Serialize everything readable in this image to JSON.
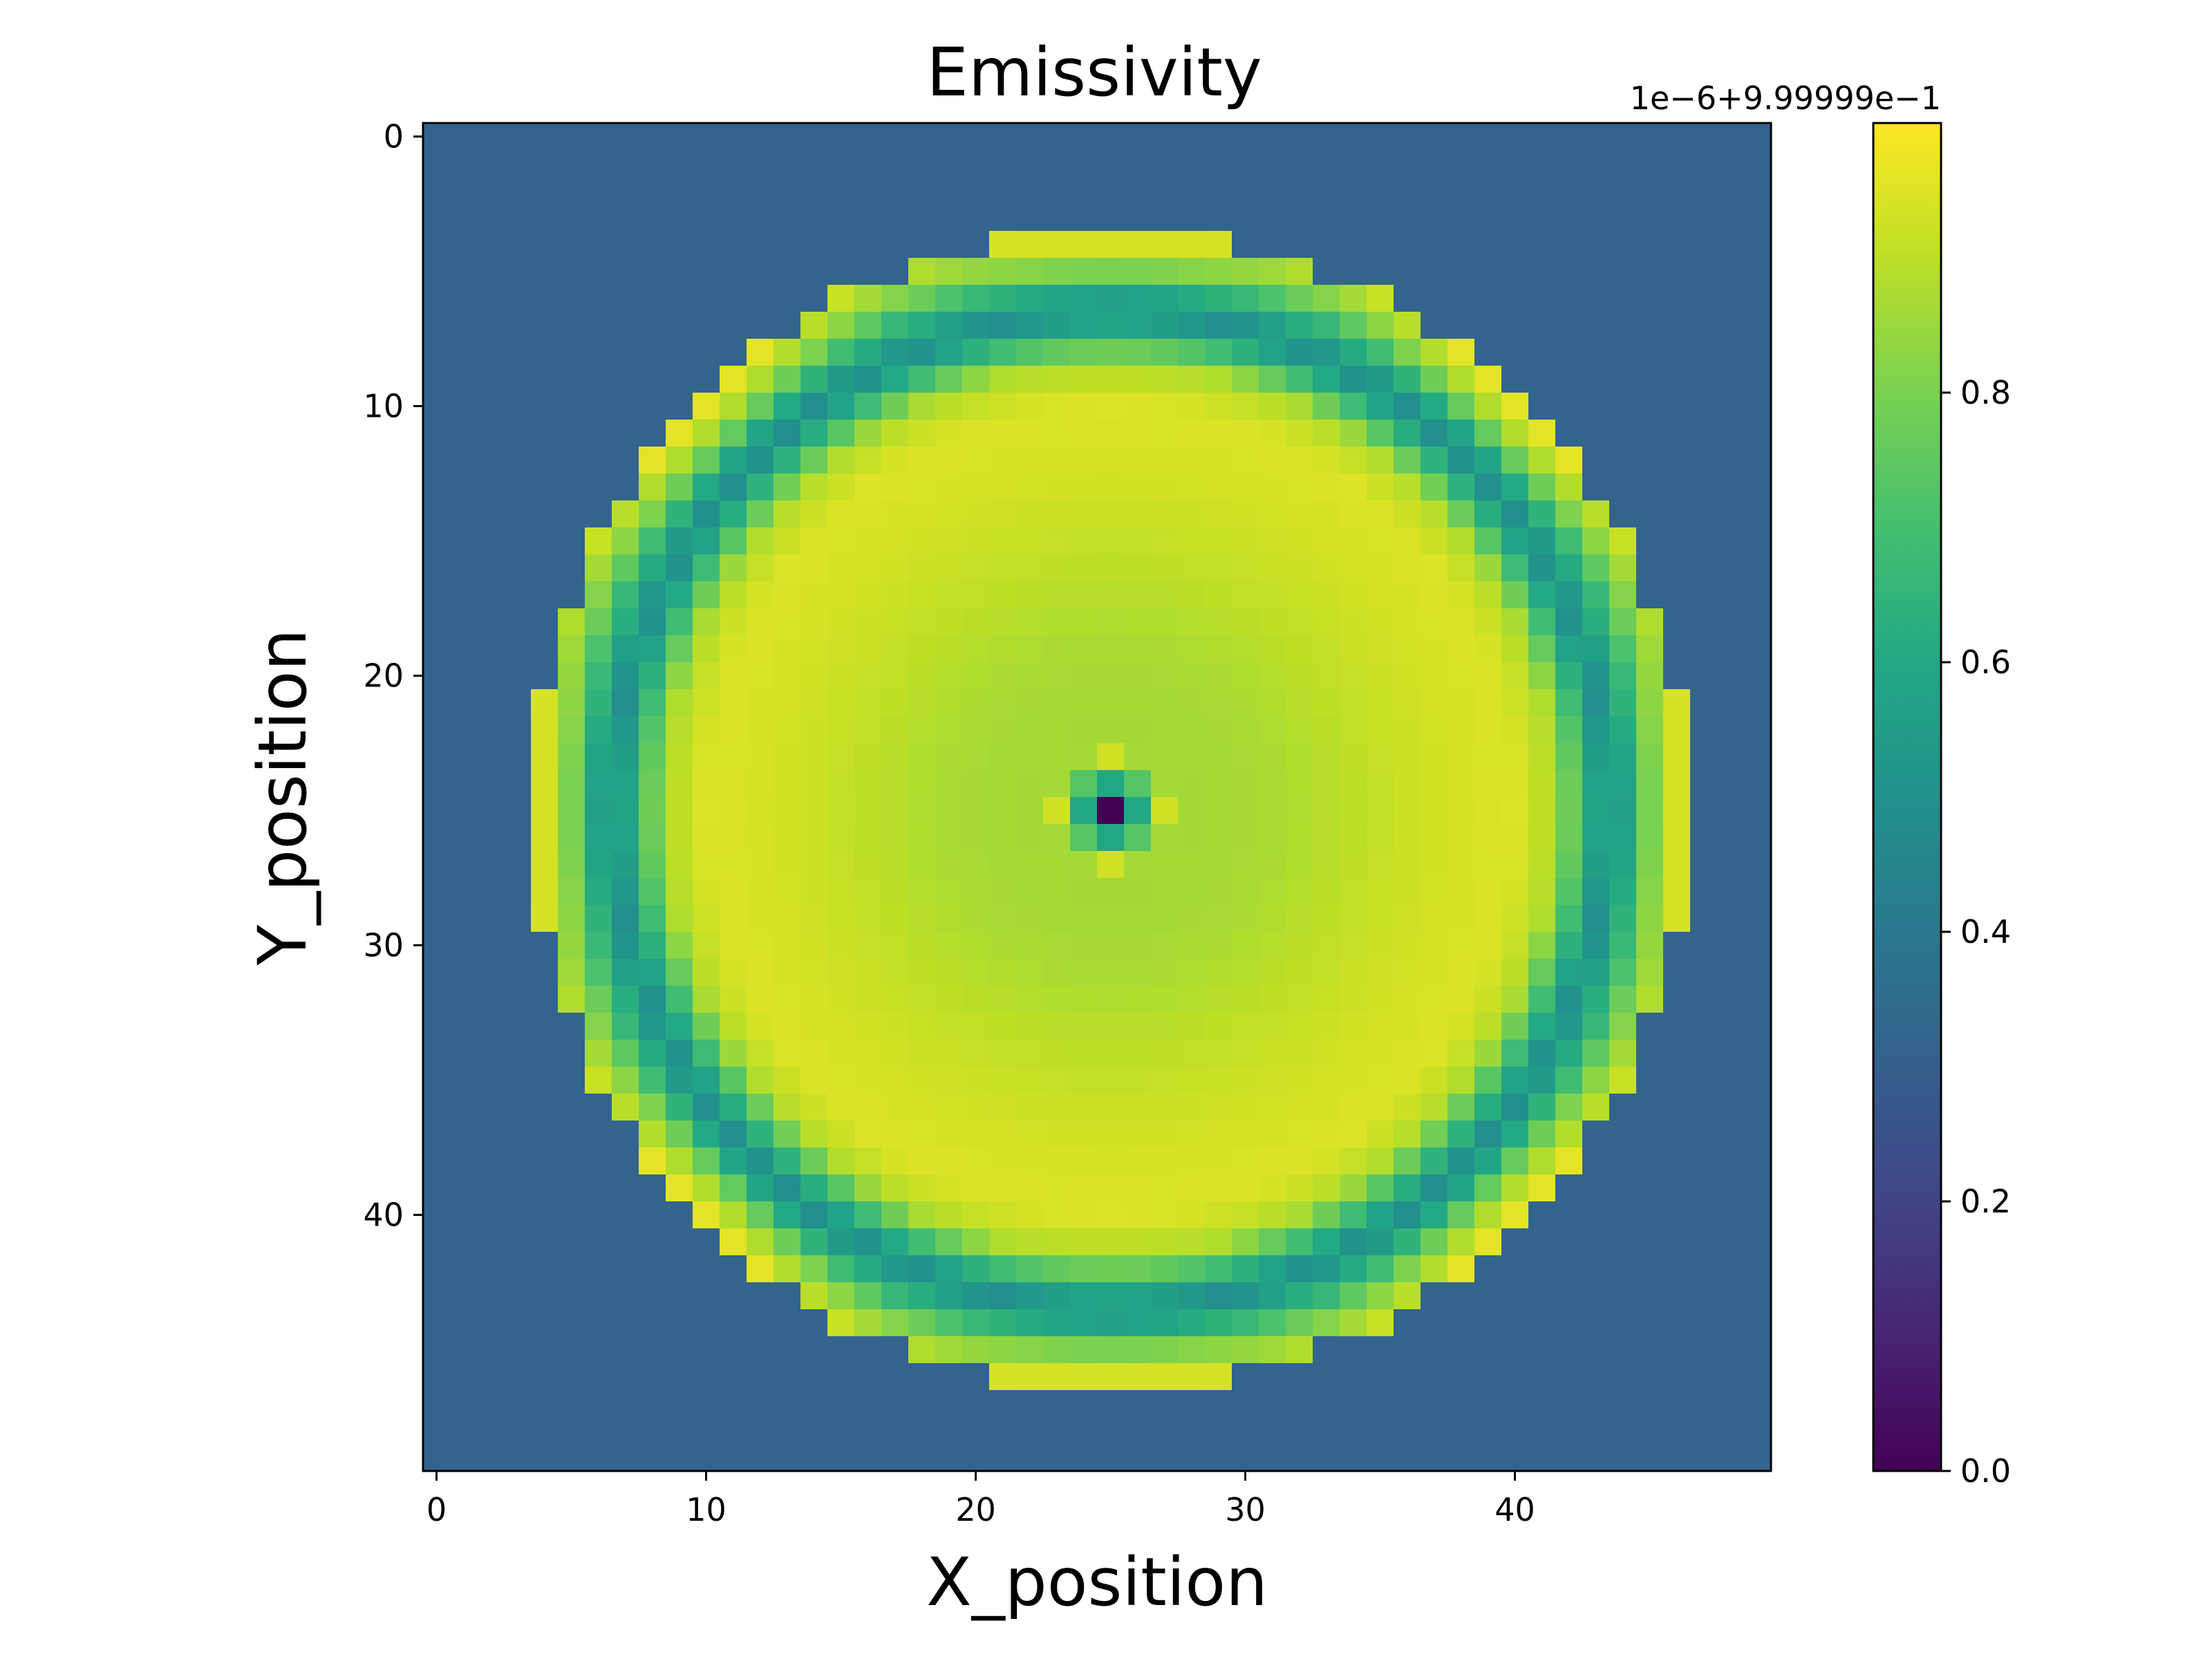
{
  "chart_data": {
    "type": "heatmap",
    "title": "Emissivity",
    "xlabel": "X_position",
    "ylabel": "Y_position",
    "grid_size": [
      50,
      50
    ],
    "x_range": [
      -0.5,
      49.5
    ],
    "y_range": [
      -0.5,
      49.5
    ],
    "y_inverted": true,
    "x_ticks": [
      "0",
      "10",
      "20",
      "30",
      "40"
    ],
    "y_ticks": [
      "0",
      "10",
      "20",
      "30",
      "40"
    ],
    "colormap": "viridis",
    "colorbar": {
      "offset_text": "1e−6+9.99999e−1",
      "ticks": [
        "0.0",
        "0.2",
        "0.4",
        "0.6",
        "0.8"
      ],
      "range": [
        0.0,
        1.0
      ]
    },
    "background_value": 0.32,
    "center": [
      25,
      25
    ],
    "radius": 21.5,
    "radial_profile": [
      [
        0,
        0.0
      ],
      [
        0.9,
        0.55
      ],
      [
        1.5,
        0.82
      ],
      [
        2.0,
        0.88
      ],
      [
        3,
        0.86
      ],
      [
        6,
        0.87
      ],
      [
        9,
        0.9
      ],
      [
        12,
        0.93
      ],
      [
        15,
        0.95
      ],
      [
        16.5,
        0.88
      ],
      [
        17.5,
        0.68
      ],
      [
        18.5,
        0.48
      ],
      [
        19.3,
        0.62
      ],
      [
        20.3,
        0.82
      ],
      [
        21.5,
        0.95
      ]
    ]
  },
  "colors": {
    "axes_edge": "#000000",
    "background_field": "#3b528b"
  }
}
